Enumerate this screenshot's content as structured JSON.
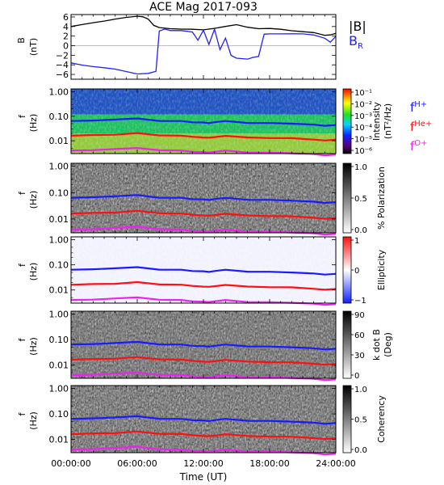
{
  "title": "ACE Mag 2017-093",
  "time_axis": {
    "label": "Time (UT)",
    "ticks": [
      "00:00:00",
      "06:00:00",
      "12:00:00",
      "18:00:00",
      "24:00:00"
    ],
    "range_hours": [
      0,
      24
    ]
  },
  "colors": {
    "B_total": "#000000",
    "B_R": "#2222ee",
    "f_H": "#1a1aff",
    "f_He": "#ff1010",
    "f_O": "#ee22ee"
  },
  "chart_data": [
    {
      "panel": "bfield",
      "type": "line",
      "ylabel": "B",
      "yunit": "(nT)",
      "ylim": [
        -7,
        6.5
      ],
      "yticks": [
        "6",
        "4",
        "2",
        "0",
        "−2",
        "−4",
        "−6"
      ],
      "legend": [
        "|B|",
        "B_R"
      ],
      "series": [
        {
          "name": "|B|",
          "x": [
            0,
            1,
            2,
            3,
            4,
            5,
            6,
            6.5,
            7,
            7.5,
            8,
            9,
            10,
            11,
            12,
            13,
            14,
            15,
            16,
            17,
            18,
            19,
            20,
            21,
            22,
            23,
            23.5,
            24
          ],
          "y": [
            4.0,
            4.3,
            4.6,
            4.9,
            5.3,
            5.7,
            6.0,
            6.0,
            5.6,
            4.4,
            4.0,
            3.8,
            3.7,
            3.6,
            3.4,
            3.6,
            3.9,
            4.2,
            3.6,
            3.3,
            3.4,
            3.3,
            3.1,
            3.0,
            2.9,
            2.4,
            2.5,
            2.8
          ]
        },
        {
          "name": "B_R",
          "x": [
            0,
            1,
            2,
            3,
            4,
            5,
            6,
            7,
            7.7,
            8.0,
            8.5,
            9,
            10,
            11,
            11.5,
            12,
            12.5,
            13,
            13.5,
            14,
            14.5,
            15,
            16,
            16.5,
            17,
            17.5,
            18,
            19,
            20,
            21,
            22,
            23,
            23.5,
            24
          ],
          "y": [
            -3.8,
            -4.3,
            -4.6,
            -4.8,
            -5.0,
            -5.4,
            -5.8,
            -5.6,
            -5.1,
            3.3,
            3.7,
            3.3,
            3.2,
            2.8,
            1.0,
            3.0,
            0.0,
            3.2,
            -1.0,
            1.5,
            -2.0,
            -2.5,
            -2.6,
            -2.2,
            -2.0,
            2.6,
            2.6,
            2.5,
            2.4,
            2.3,
            2.0,
            1.3,
            0.5,
            1.8
          ]
        }
      ]
    },
    {
      "panel": "intensity",
      "type": "heatmap",
      "ylabel": "f",
      "yunit": "(Hz)",
      "yscale": "log",
      "ylim": [
        0.003,
        1.3
      ],
      "yticks": [
        "1.00",
        "0.10",
        "0.01"
      ],
      "colorbar": {
        "label": "Intensity",
        "unit": "(nT²/Hz)",
        "ticks": [
          "10⁻¹",
          "10⁻²",
          "10⁻³",
          "10⁻⁴",
          "10⁻⁵",
          "10⁻⁶"
        ]
      },
      "legend": [
        "fH+",
        "fHe+",
        "fO+"
      ]
    },
    {
      "panel": "polarization",
      "type": "heatmap",
      "ylabel": "f",
      "yunit": "(Hz)",
      "yscale": "log",
      "yticks": [
        "1.00",
        "0.10",
        "0.01"
      ],
      "colorbar": {
        "label": "% Polarization",
        "ticks": [
          "1.0",
          "0.5",
          "0.0"
        ]
      }
    },
    {
      "panel": "ellipticity",
      "type": "heatmap",
      "ylabel": "f",
      "yunit": "(Hz)",
      "yscale": "log",
      "yticks": [
        "1.00",
        "0.10",
        "0.01"
      ],
      "colorbar": {
        "label": "Ellipticity",
        "ticks": [
          "1",
          "0",
          "−1"
        ]
      }
    },
    {
      "panel": "kdotb",
      "type": "heatmap",
      "ylabel": "f",
      "yunit": "(Hz)",
      "yscale": "log",
      "yticks": [
        "1.00",
        "0.10",
        "0.01"
      ],
      "colorbar": {
        "label": "k dot B",
        "unit": "(Deg)",
        "ticks": [
          "90",
          "60",
          "30",
          "0"
        ]
      }
    },
    {
      "panel": "coherency",
      "type": "heatmap",
      "ylabel": "f",
      "yunit": "(Hz)",
      "yscale": "log",
      "yticks": [
        "1.00",
        "0.10",
        "0.01"
      ],
      "colorbar": {
        "label": "Coherency",
        "ticks": [
          "1.0",
          "0.5",
          "0.0"
        ]
      }
    }
  ],
  "gyrofrequencies": {
    "x": [
      0,
      2,
      4,
      6,
      8,
      10,
      11,
      12,
      12.5,
      13,
      14,
      16,
      18,
      20,
      22,
      23,
      24
    ],
    "fH": [
      0.062,
      0.068,
      0.073,
      0.08,
      0.066,
      0.062,
      0.058,
      0.055,
      0.052,
      0.058,
      0.062,
      0.055,
      0.052,
      0.05,
      0.046,
      0.04,
      0.045
    ],
    "fHe": [
      0.016,
      0.017,
      0.018,
      0.02,
      0.017,
      0.016,
      0.0145,
      0.0138,
      0.013,
      0.0145,
      0.0155,
      0.0138,
      0.013,
      0.0125,
      0.0115,
      0.01,
      0.0112
    ],
    "fO": [
      0.0039,
      0.0042,
      0.0046,
      0.005,
      0.0042,
      0.0039,
      0.0036,
      0.0034,
      0.0033,
      0.0036,
      0.0039,
      0.0034,
      0.0032,
      0.0031,
      0.0029,
      0.0025,
      0.0028
    ]
  }
}
